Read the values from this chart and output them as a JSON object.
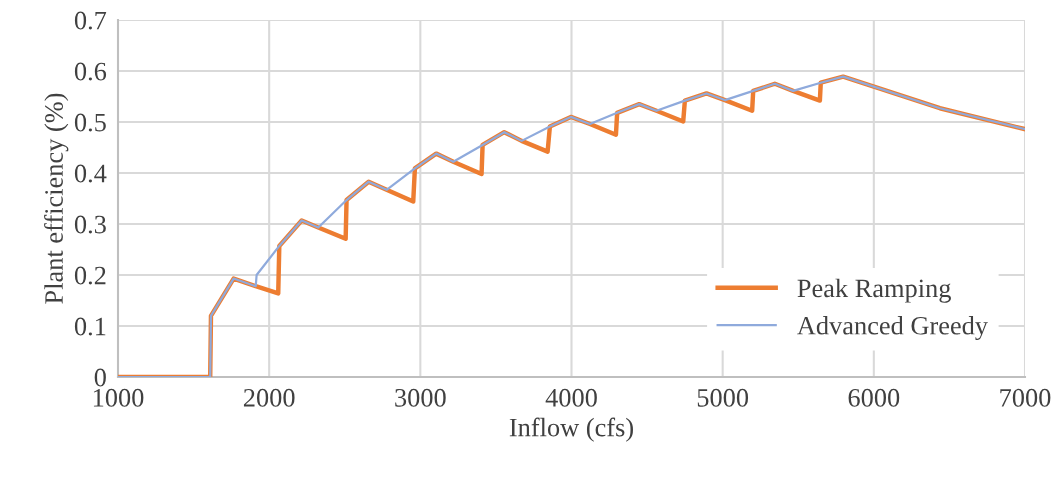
{
  "chart_data": {
    "type": "line",
    "xlabel": "Inflow (cfs)",
    "ylabel": "Plant efficiency (%)",
    "xlim": [
      1000,
      7000
    ],
    "xticks": [
      1000,
      2000,
      3000,
      4000,
      5000,
      6000,
      7000
    ],
    "ylim": [
      0,
      0.7
    ],
    "yticks": [
      0,
      0.1,
      0.2,
      0.3,
      0.4,
      0.5,
      0.6,
      0.7
    ],
    "grid": true,
    "legend": "bottom right",
    "marker": "none",
    "line_style": "solid",
    "series": [
      {
        "name": "Peak Ramping",
        "color": "#ed7d31",
        "x": [
          1000,
          1610,
          1615,
          1765,
          1911,
          2060,
          2067,
          2215,
          2325,
          2506,
          2512,
          2658,
          2777,
          2953,
          2964,
          3105,
          3218,
          3405,
          3412,
          3555,
          3670,
          3842,
          3857,
          3996,
          4122,
          4294,
          4302,
          4448,
          4562,
          4739,
          4750,
          4893,
          5015,
          5195,
          5202,
          5345,
          5466,
          5643,
          5649,
          5797,
          6437,
          7000
        ],
        "values": [
          0,
          0,
          0.12,
          0.193,
          0.178,
          0.164,
          0.257,
          0.307,
          0.293,
          0.271,
          0.347,
          0.383,
          0.367,
          0.344,
          0.409,
          0.438,
          0.422,
          0.398,
          0.455,
          0.48,
          0.463,
          0.442,
          0.491,
          0.51,
          0.496,
          0.475,
          0.518,
          0.535,
          0.522,
          0.501,
          0.542,
          0.556,
          0.543,
          0.522,
          0.561,
          0.575,
          0.561,
          0.542,
          0.577,
          0.589,
          0.527,
          0.486
        ]
      },
      {
        "name": "Advanced Greedy",
        "color": "#8faadc",
        "x": [
          1000,
          1610,
          1615,
          1765,
          1911,
          1917,
          2067,
          2215,
          2325,
          2512,
          2658,
          2777,
          2964,
          3105,
          3218,
          3412,
          3555,
          3670,
          3857,
          3996,
          4122,
          4302,
          4448,
          4562,
          4750,
          4893,
          5015,
          5202,
          5345,
          5466,
          5649,
          5797,
          6437,
          7000
        ],
        "values": [
          0,
          0,
          0.12,
          0.193,
          0.178,
          0.2,
          0.257,
          0.307,
          0.293,
          0.347,
          0.383,
          0.367,
          0.409,
          0.438,
          0.422,
          0.455,
          0.48,
          0.463,
          0.491,
          0.51,
          0.496,
          0.518,
          0.535,
          0.522,
          0.542,
          0.556,
          0.543,
          0.561,
          0.575,
          0.561,
          0.577,
          0.589,
          0.527,
          0.486
        ]
      }
    ]
  }
}
